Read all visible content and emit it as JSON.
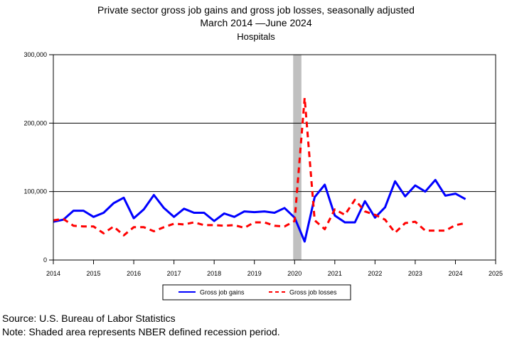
{
  "title_line1": "Private sector gross job gains and gross job losses, seasonally adjusted",
  "title_line2": "March 2014 —June 2024",
  "title_line3": "Hospitals",
  "source_note": "Source: U.S. Bureau of Labor Statistics",
  "recession_note": "Note: Shaded area represents NBER defined recession period.",
  "chart_data": {
    "type": "line",
    "title": "Private sector gross job gains and gross job losses, seasonally adjusted",
    "subtitle": "March 2014 —June 2024",
    "xlabel": "",
    "ylabel": "",
    "xlim": [
      2014,
      2025
    ],
    "ylim": [
      0,
      300000
    ],
    "y_ticks": [
      0,
      100000,
      200000,
      300000
    ],
    "y_tick_labels": [
      "0",
      "100,000",
      "200,000",
      "300,000"
    ],
    "x_ticks": [
      2014,
      2015,
      2016,
      2017,
      2018,
      2019,
      2020,
      2021,
      2022,
      2023,
      2024,
      2025
    ],
    "x_tick_labels": [
      "2014",
      "2015",
      "2016",
      "2017",
      "2018",
      "2019",
      "2020",
      "2021",
      "2022",
      "2023",
      "2024",
      "2025"
    ],
    "grid": "horizontal",
    "legend_position": "bottom",
    "recession_shading": [
      2020.0,
      2020.17
    ],
    "x": [
      2014.0,
      2014.25,
      2014.5,
      2014.75,
      2015.0,
      2015.25,
      2015.5,
      2015.75,
      2016.0,
      2016.25,
      2016.5,
      2016.75,
      2017.0,
      2017.25,
      2017.5,
      2017.75,
      2018.0,
      2018.25,
      2018.5,
      2018.75,
      2019.0,
      2019.25,
      2019.5,
      2019.75,
      2020.0,
      2020.25,
      2020.5,
      2020.75,
      2021.0,
      2021.25,
      2021.5,
      2021.75,
      2022.0,
      2022.25,
      2022.5,
      2022.75,
      2023.0,
      2023.25,
      2023.5,
      2023.75,
      2024.0,
      2024.25
    ],
    "series": [
      {
        "name": "Gross job gains",
        "color": "#0000ff",
        "style": "solid",
        "values": [
          56000,
          59000,
          72000,
          72000,
          63000,
          69000,
          83000,
          91000,
          61000,
          74000,
          95000,
          76000,
          63000,
          75000,
          69000,
          69000,
          57000,
          68000,
          63000,
          71000,
          70000,
          71000,
          69000,
          76000,
          62000,
          27000,
          92000,
          110000,
          65000,
          55000,
          55000,
          86000,
          62000,
          77000,
          115000,
          93000,
          109000,
          100000,
          117000,
          94000,
          97000,
          89000
        ]
      },
      {
        "name": "Gross job losses",
        "color": "#ff0000",
        "style": "dashed",
        "values": [
          58000,
          60000,
          50000,
          49000,
          49000,
          39000,
          49000,
          36000,
          48000,
          48000,
          42000,
          48000,
          53000,
          52000,
          55000,
          51000,
          51000,
          50000,
          51000,
          47000,
          55000,
          55000,
          50000,
          49000,
          57000,
          237000,
          58000,
          45000,
          74000,
          66000,
          88000,
          71000,
          66000,
          59000,
          40000,
          54000,
          56000,
          43000,
          43000,
          43000,
          51000,
          54000
        ]
      }
    ]
  }
}
